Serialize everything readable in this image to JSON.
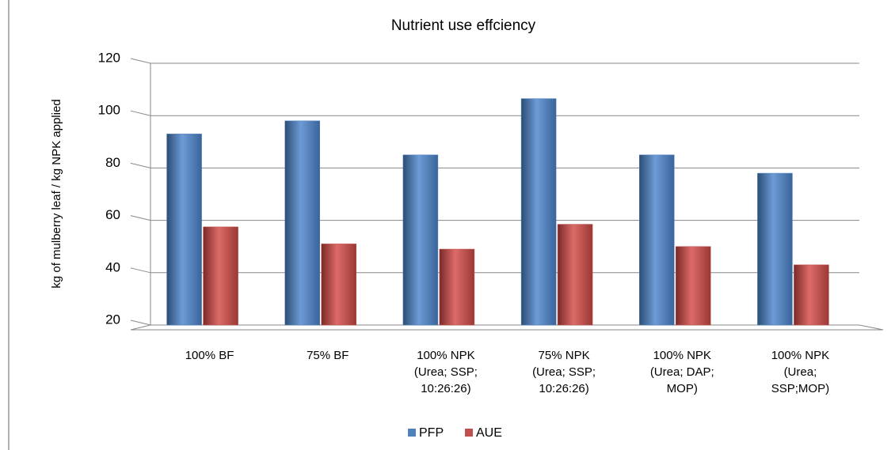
{
  "chart_data": {
    "type": "bar",
    "title": "Nutrient use effciency",
    "y_label": "kg of mulberry leaf / kg NPK applied",
    "categories": [
      "100% BF",
      "75% BF",
      "100% NPK\n(Urea; SSP;\n10:26:26)",
      "75% NPK\n(Urea; SSP;\n10:26:26)",
      "100% NPK\n(Urea; DAP;\nMOP)",
      "100% NPK\n(Urea;\nSSP;MOP)"
    ],
    "series": [
      {
        "name": "PFP",
        "color": "#4f81bd",
        "values": [
          93,
          98,
          85,
          106.5,
          85,
          78
        ]
      },
      {
        "name": "AUE",
        "color": "#c0504d",
        "values": [
          57.5,
          51,
          49,
          58.5,
          50,
          43
        ]
      }
    ],
    "ylim": [
      20,
      120
    ],
    "yticks": [
      20,
      40,
      60,
      80,
      100,
      120
    ],
    "grid": true,
    "legend": "bottom"
  }
}
